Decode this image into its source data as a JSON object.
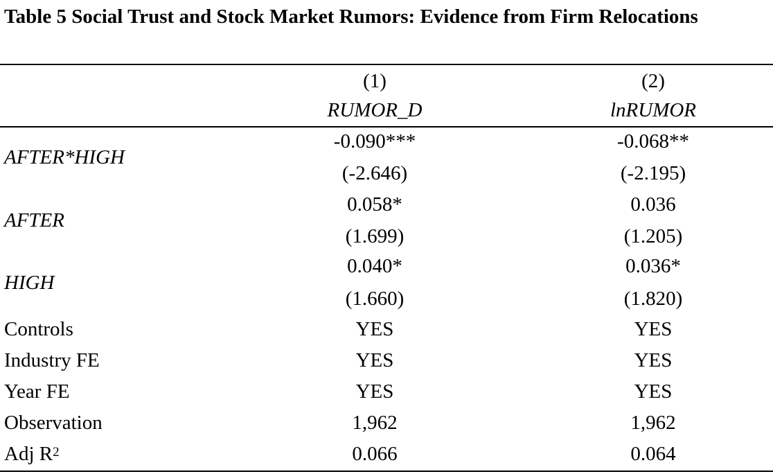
{
  "table": {
    "title": "Table 5 Social Trust and Stock Market Rumors: Evidence from Firm Relocations",
    "columns": [
      {
        "number": "(1)",
        "name": "RUMOR_D"
      },
      {
        "number": "(2)",
        "name": "lnRUMOR"
      }
    ],
    "variable_rows": [
      {
        "label": "AFTER*HIGH",
        "coef": [
          "-0.090***",
          "-0.068**"
        ],
        "tstat": [
          "(-2.646)",
          "(-2.195)"
        ]
      },
      {
        "label": "AFTER",
        "coef": [
          "0.058*",
          "0.036"
        ],
        "tstat": [
          "(1.699)",
          "(1.205)"
        ]
      },
      {
        "label": "HIGH",
        "coef": [
          "0.040*",
          "0.036*"
        ],
        "tstat": [
          "(1.660)",
          "(1.820)"
        ]
      }
    ],
    "summary_rows": [
      {
        "label": "Controls",
        "values": [
          "YES",
          "YES"
        ]
      },
      {
        "label": "Industry FE",
        "values": [
          "YES",
          "YES"
        ]
      },
      {
        "label": "Year FE",
        "values": [
          "YES",
          "YES"
        ]
      },
      {
        "label": "Observation",
        "values": [
          "1,962",
          "1,962"
        ]
      }
    ],
    "adj_r2": {
      "label": "Adj R",
      "label_superscript": "2",
      "values": [
        "0.066",
        "0.064"
      ]
    }
  }
}
